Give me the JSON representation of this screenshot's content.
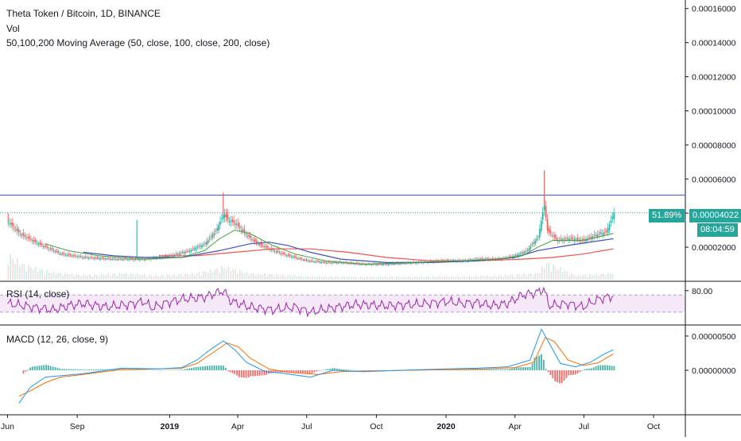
{
  "legend": {
    "title": "Theta Token / Bitcoin, 1D, BINANCE",
    "vol": "Vol",
    "ma": "50,100,200 Moving Average (50, close, 100, close, 200, close)"
  },
  "price_tags": {
    "change": "51.89%",
    "last_price": "0.00004022",
    "countdown": "08:04:59"
  },
  "colors": {
    "up": "#26a69a",
    "down": "#ef5350",
    "ma50": "#43a047",
    "ma100": "#3f51b5",
    "ma200": "#ef5350",
    "level_line": "#3f48cc",
    "rsi": "#9c27b0",
    "macd": "#2196f3",
    "signal": "#ff6d00"
  },
  "chart_data": [
    {
      "type": "line",
      "name": "price",
      "title": "Theta Token / Bitcoin, 1D, BINANCE",
      "y_ticks": [
        "0.00016000",
        "0.00014000",
        "0.00012000",
        "0.00010000",
        "0.00008000",
        "0.00006000",
        "0.00004000",
        "0.00002000"
      ],
      "ylim": [
        0,
        0.000165
      ],
      "x_ticks": [
        {
          "label": "Jun",
          "d": 0,
          "bold": false
        },
        {
          "label": "Sep",
          "d": 92,
          "bold": false
        },
        {
          "label": "2019",
          "d": 214,
          "bold": true
        },
        {
          "label": "Apr",
          "d": 304,
          "bold": false
        },
        {
          "label": "Jul",
          "d": 395,
          "bold": false
        },
        {
          "label": "Oct",
          "d": 487,
          "bold": false
        },
        {
          "label": "2020",
          "d": 579,
          "bold": true
        },
        {
          "label": "Apr",
          "d": 670,
          "bold": false
        },
        {
          "label": "Jul",
          "d": 761,
          "bold": false
        },
        {
          "label": "Oct",
          "d": 853,
          "bold": false
        }
      ],
      "xlim": [
        -10,
        895
      ],
      "close": [
        [
          0,
          3.5e-05
        ],
        [
          15,
          2.8e-05
        ],
        [
          40,
          2.2e-05
        ],
        [
          70,
          1.6e-05
        ],
        [
          100,
          1.4e-05
        ],
        [
          140,
          1.3e-05
        ],
        [
          180,
          1.3e-05
        ],
        [
          200,
          1.4e-05
        ],
        [
          215,
          1.5e-05
        ],
        [
          240,
          1.8e-05
        ],
        [
          260,
          2.2e-05
        ],
        [
          275,
          3e-05
        ],
        [
          285,
          4e-05
        ],
        [
          290,
          3.6e-05
        ],
        [
          300,
          3.4e-05
        ],
        [
          315,
          2.7e-05
        ],
        [
          330,
          2.2e-05
        ],
        [
          350,
          1.8e-05
        ],
        [
          370,
          1.5e-05
        ],
        [
          395,
          1.2e-05
        ],
        [
          420,
          1.1e-05
        ],
        [
          440,
          1.1e-05
        ],
        [
          470,
          1e-05
        ],
        [
          500,
          1e-05
        ],
        [
          540,
          1.1e-05
        ],
        [
          570,
          1.2e-05
        ],
        [
          600,
          1.2e-05
        ],
        [
          620,
          1.3e-05
        ],
        [
          650,
          1.3e-05
        ],
        [
          670,
          1.5e-05
        ],
        [
          685,
          1.8e-05
        ],
        [
          700,
          2.6e-05
        ],
        [
          708,
          4.5e-05
        ],
        [
          712,
          3e-05
        ],
        [
          725,
          2.4e-05
        ],
        [
          740,
          2.5e-05
        ],
        [
          760,
          2.4e-05
        ],
        [
          775,
          2.7e-05
        ],
        [
          790,
          2.9e-05
        ],
        [
          800,
          4e-05
        ]
      ],
      "high_spikes": [
        [
          0,
          4e-05
        ],
        [
          170,
          3.6e-05
        ],
        [
          284,
          5.2e-05
        ],
        [
          708,
          6.5e-05
        ]
      ],
      "ma50": [
        [
          50,
          2.2e-05
        ],
        [
          80,
          1.8e-05
        ],
        [
          120,
          1.5e-05
        ],
        [
          180,
          1.3e-05
        ],
        [
          230,
          1.4e-05
        ],
        [
          260,
          1.8e-05
        ],
        [
          280,
          2.5e-05
        ],
        [
          300,
          3e-05
        ],
        [
          320,
          2.8e-05
        ],
        [
          350,
          2.1e-05
        ],
        [
          380,
          1.6e-05
        ],
        [
          420,
          1.2e-05
        ],
        [
          470,
          1e-05
        ],
        [
          540,
          1.1e-05
        ],
        [
          600,
          1.2e-05
        ],
        [
          650,
          1.3e-05
        ],
        [
          680,
          1.5e-05
        ],
        [
          700,
          2e-05
        ],
        [
          720,
          2.4e-05
        ],
        [
          760,
          2.4e-05
        ],
        [
          800,
          2.8e-05
        ]
      ],
      "ma100": [
        [
          100,
          1.7e-05
        ],
        [
          140,
          1.5e-05
        ],
        [
          180,
          1.4e-05
        ],
        [
          230,
          1.4e-05
        ],
        [
          280,
          1.8e-05
        ],
        [
          320,
          2.2e-05
        ],
        [
          345,
          2.3e-05
        ],
        [
          370,
          2.1e-05
        ],
        [
          400,
          1.7e-05
        ],
        [
          440,
          1.3e-05
        ],
        [
          500,
          1.1e-05
        ],
        [
          560,
          1.1e-05
        ],
        [
          620,
          1.2e-05
        ],
        [
          670,
          1.4e-05
        ],
        [
          700,
          1.8e-05
        ],
        [
          740,
          2.1e-05
        ],
        [
          800,
          2.5e-05
        ]
      ],
      "ma200": [
        [
          200,
          1.5e-05
        ],
        [
          250,
          1.5e-05
        ],
        [
          300,
          1.7e-05
        ],
        [
          350,
          1.9e-05
        ],
        [
          400,
          1.9e-05
        ],
        [
          450,
          1.7e-05
        ],
        [
          500,
          1.4e-05
        ],
        [
          560,
          1.2e-05
        ],
        [
          620,
          1.2e-05
        ],
        [
          680,
          1.3e-05
        ],
        [
          720,
          1.4e-05
        ],
        [
          760,
          1.6e-05
        ],
        [
          800,
          1.9e-05
        ]
      ],
      "level_line": 5.05e-05,
      "last_line": 4.022e-05,
      "volume": [
        [
          0,
          0.6
        ],
        [
          20,
          0.35
        ],
        [
          50,
          0.2
        ],
        [
          100,
          0.1
        ],
        [
          150,
          0.15
        ],
        [
          200,
          0.1
        ],
        [
          250,
          0.15
        ],
        [
          285,
          0.3
        ],
        [
          320,
          0.15
        ],
        [
          400,
          0.08
        ],
        [
          500,
          0.07
        ],
        [
          600,
          0.08
        ],
        [
          650,
          0.1
        ],
        [
          700,
          0.15
        ],
        [
          710,
          0.4
        ],
        [
          750,
          0.1
        ],
        [
          800,
          0.15
        ]
      ]
    },
    {
      "type": "line",
      "name": "rsi",
      "title": "RSI (14, close)",
      "y_ticks": [
        "80.00"
      ],
      "ylim": [
        0,
        100
      ],
      "upper": 70,
      "lower": 30,
      "values": [
        [
          0,
          50
        ],
        [
          20,
          45
        ],
        [
          40,
          40
        ],
        [
          60,
          35
        ],
        [
          80,
          45
        ],
        [
          100,
          50
        ],
        [
          130,
          42
        ],
        [
          160,
          48
        ],
        [
          180,
          55
        ],
        [
          190,
          40
        ],
        [
          200,
          45
        ],
        [
          210,
          52
        ],
        [
          230,
          60
        ],
        [
          260,
          65
        ],
        [
          285,
          80
        ],
        [
          295,
          55
        ],
        [
          320,
          42
        ],
        [
          350,
          35
        ],
        [
          380,
          42
        ],
        [
          400,
          30
        ],
        [
          430,
          40
        ],
        [
          460,
          48
        ],
        [
          500,
          45
        ],
        [
          540,
          48
        ],
        [
          580,
          55
        ],
        [
          600,
          50
        ],
        [
          620,
          52
        ],
        [
          640,
          45
        ],
        [
          660,
          50
        ],
        [
          680,
          70
        ],
        [
          700,
          76
        ],
        [
          708,
          85
        ],
        [
          715,
          45
        ],
        [
          740,
          50
        ],
        [
          760,
          42
        ],
        [
          780,
          60
        ],
        [
          800,
          68
        ]
      ]
    },
    {
      "type": "line",
      "name": "macd",
      "title": "MACD (12, 26, close, 9)",
      "y_ticks": [
        "0.00000500",
        "0.00000000"
      ],
      "ylim": [
        -6.5e-06,
        6.5e-06
      ],
      "macd": [
        [
          15,
          -4.8e-06
        ],
        [
          30,
          -2.5e-06
        ],
        [
          50,
          -1e-06
        ],
        [
          70,
          -8e-07
        ],
        [
          100,
          -5e-07
        ],
        [
          150,
          3e-07
        ],
        [
          200,
          2e-07
        ],
        [
          230,
          4e-07
        ],
        [
          250,
          1.5e-06
        ],
        [
          270,
          3.2e-06
        ],
        [
          285,
          4.3e-06
        ],
        [
          300,
          3e-06
        ],
        [
          315,
          1.2e-06
        ],
        [
          340,
          -2e-07
        ],
        [
          360,
          -4e-07
        ],
        [
          400,
          -1e-06
        ],
        [
          430,
          0.0
        ],
        [
          470,
          -2e-07
        ],
        [
          520,
          0.0
        ],
        [
          580,
          2e-07
        ],
        [
          620,
          3e-07
        ],
        [
          660,
          5e-07
        ],
        [
          690,
          1.5e-06
        ],
        [
          705,
          6e-06
        ],
        [
          715,
          4e-06
        ],
        [
          730,
          1e-06
        ],
        [
          750,
          5e-07
        ],
        [
          770,
          1.2e-06
        ],
        [
          790,
          2.5e-06
        ],
        [
          800,
          3e-06
        ]
      ],
      "signal": [
        [
          15,
          -3.8e-06
        ],
        [
          30,
          -3e-06
        ],
        [
          50,
          -1.8e-06
        ],
        [
          70,
          -1e-06
        ],
        [
          100,
          -6e-07
        ],
        [
          150,
          1e-07
        ],
        [
          200,
          2e-07
        ],
        [
          230,
          3e-07
        ],
        [
          250,
          1e-06
        ],
        [
          270,
          2.5e-06
        ],
        [
          290,
          4e-06
        ],
        [
          305,
          3.4e-06
        ],
        [
          320,
          1.8e-06
        ],
        [
          345,
          2e-07
        ],
        [
          370,
          -3e-07
        ],
        [
          410,
          -6e-07
        ],
        [
          440,
          -2e-07
        ],
        [
          480,
          -1e-07
        ],
        [
          530,
          0.0
        ],
        [
          590,
          1e-07
        ],
        [
          630,
          2e-07
        ],
        [
          670,
          4e-07
        ],
        [
          695,
          1.2e-06
        ],
        [
          710,
          4.8e-06
        ],
        [
          722,
          4.2e-06
        ],
        [
          740,
          1.5e-06
        ],
        [
          760,
          7e-07
        ],
        [
          780,
          1.1e-06
        ],
        [
          800,
          2.4e-06
        ]
      ]
    }
  ]
}
